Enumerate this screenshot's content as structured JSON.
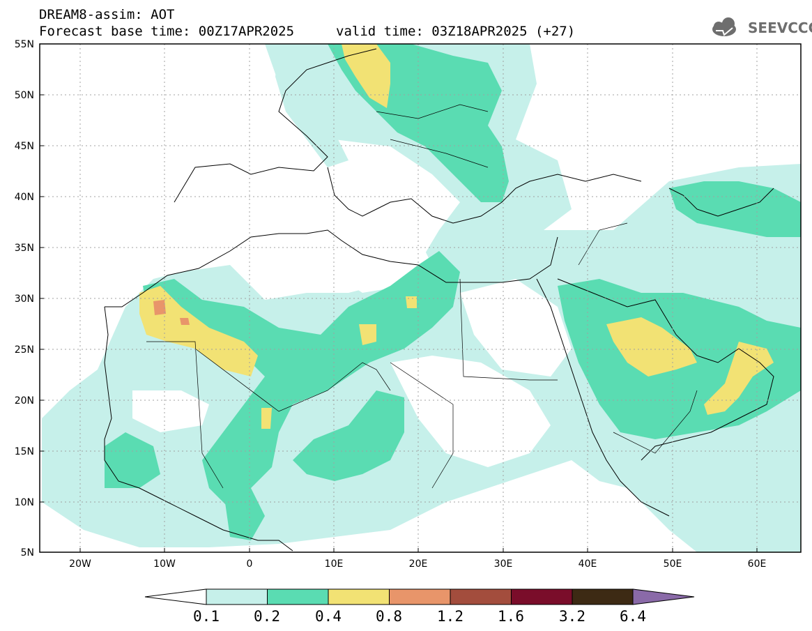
{
  "title": {
    "line1": "DREAM8-assim: AOT",
    "line2": "Forecast base time: 00Z17APR2025",
    "line3": "valid time: 03Z18APR2025 (+27)"
  },
  "logo": {
    "text": "SEEVCCC",
    "icon": "cloud-logo-icon"
  },
  "map": {
    "lat_labels": [
      "55N",
      "50N",
      "45N",
      "40N",
      "35N",
      "30N",
      "25N",
      "20N",
      "15N",
      "10N",
      "5N"
    ],
    "lon_labels": [
      "20W",
      "10W",
      "0",
      "10E",
      "20E",
      "30E",
      "40E",
      "50E",
      "60E"
    ],
    "lat_range": [
      5,
      55
    ],
    "lon_range": [
      -25,
      65
    ],
    "grid": "dotted",
    "projection": "lat-lon"
  },
  "colorbar": {
    "labels": [
      "0.1",
      "0.2",
      "0.4",
      "0.8",
      "1.2",
      "1.6",
      "3.2",
      "6.4"
    ],
    "colors": [
      "#c6f0ea",
      "#5adcb2",
      "#f2e274",
      "#e8956a",
      "#a34d3d",
      "#7a0d2a",
      "#3d2a14"
    ],
    "over_color": "#8a6aa8",
    "under_color": "#ffffff"
  }
}
